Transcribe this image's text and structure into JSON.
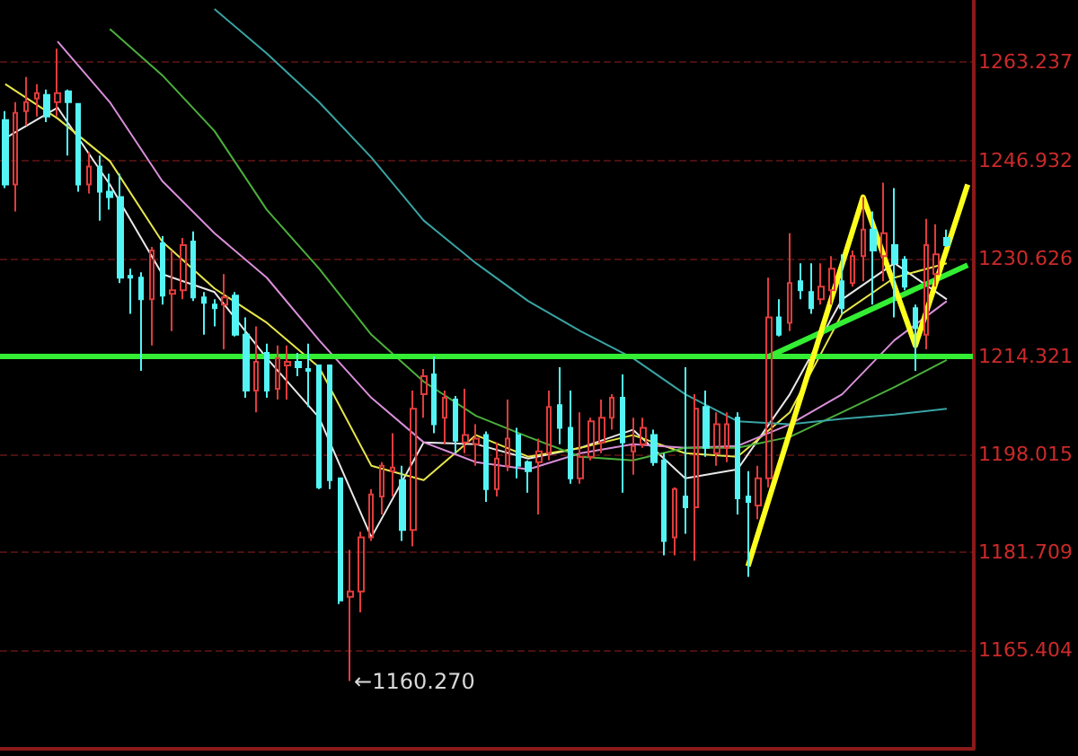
{
  "chart_data": {
    "type": "candlestick",
    "categories": [
      null,
      null,
      null,
      null,
      null,
      null,
      null,
      null,
      null,
      null,
      null,
      null,
      null,
      null,
      null,
      null,
      null,
      null,
      null,
      null,
      null,
      null,
      null,
      null,
      null,
      null,
      null,
      null,
      null,
      null,
      null,
      null,
      null,
      null,
      null,
      null,
      null,
      null,
      null,
      null,
      null,
      null,
      null,
      null,
      null,
      null,
      null,
      null,
      null,
      null,
      null,
      null,
      null,
      null,
      null,
      null,
      null,
      null,
      null,
      null,
      null,
      null,
      null,
      null,
      null,
      null,
      null,
      null,
      null,
      null,
      null,
      null,
      null,
      null,
      null,
      null,
      null,
      null,
      null,
      null,
      null,
      null,
      null,
      null,
      null,
      null,
      null,
      null,
      null,
      null,
      null,
      null,
      null
    ],
    "ohlc": [
      [
        1253.6,
        1255.1,
        1242.3,
        1242.9
      ],
      [
        1242.9,
        1256.6,
        1238.4,
        1254.8
      ],
      [
        1255.1,
        1260.8,
        1252.7,
        1256.6
      ],
      [
        1257.2,
        1259.6,
        1254.2,
        1258.1
      ],
      [
        1257.8,
        1258.7,
        1253.3,
        1254.2
      ],
      [
        1256.6,
        1265.5,
        1254.2,
        1258.1
      ],
      [
        1258.4,
        1258.7,
        1247.7,
        1256.6
      ],
      [
        1256.3,
        1256.3,
        1241.7,
        1242.9
      ],
      [
        1242.9,
        1248.3,
        1241.4,
        1245.9
      ],
      [
        1245.9,
        1247.7,
        1236.9,
        1241.7
      ],
      [
        1241.7,
        1244.7,
        1238.7,
        1240.8
      ],
      [
        1240.8,
        1244.7,
        1226.5,
        1227.4
      ],
      [
        1227.7,
        1228.9,
        1221.4,
        1227.4
      ],
      [
        1227.4,
        1228.3,
        1211.9,
        1223.8
      ],
      [
        1223.8,
        1232.5,
        1216.1,
        1231.9
      ],
      [
        1233.1,
        1234.3,
        1222.9,
        1224.4
      ],
      [
        1224.7,
        1231.9,
        1218.5,
        1225.3
      ],
      [
        1225.3,
        1234.0,
        1223.8,
        1232.8
      ],
      [
        1233.4,
        1235.1,
        1223.5,
        1224.1
      ],
      [
        1224.1,
        1225.0,
        1217.9,
        1223.2
      ],
      [
        1222.9,
        1223.8,
        1219.3,
        1222.3
      ],
      [
        1222.9,
        1228.0,
        1215.5,
        1224.1
      ],
      [
        1224.4,
        1225.0,
        1217.6,
        1217.9
      ],
      [
        1217.9,
        1220.8,
        1207.4,
        1208.6
      ],
      [
        1208.6,
        1219.3,
        1205.0,
        1213.4
      ],
      [
        1214.9,
        1216.4,
        1207.4,
        1208.6
      ],
      [
        1208.9,
        1216.1,
        1207.1,
        1214.0
      ],
      [
        1212.8,
        1216.1,
        1207.1,
        1213.4
      ],
      [
        1213.4,
        1214.9,
        1211.0,
        1212.5
      ],
      [
        1212.2,
        1216.4,
        1205.9,
        1211.9
      ],
      [
        1212.8,
        1212.8,
        1192.2,
        1192.5
      ],
      [
        1212.8,
        1212.8,
        1192.2,
        1193.7
      ],
      [
        1194.0,
        1194.0,
        1173.1,
        1173.7
      ],
      [
        1174.3,
        1182.1,
        1160.27,
        1175.2
      ],
      [
        1175.2,
        1185.1,
        1171.7,
        1184.2
      ],
      [
        1184.2,
        1192.2,
        1183.6,
        1191.3
      ],
      [
        1191.0,
        1196.7,
        1188.0,
        1196.1
      ],
      [
        1195.2,
        1201.5,
        1191.0,
        1195.8
      ],
      [
        1193.7,
        1196.1,
        1183.6,
        1185.4
      ],
      [
        1185.4,
        1208.6,
        1182.7,
        1205.6
      ],
      [
        1208.0,
        1212.2,
        1204.1,
        1211.0
      ],
      [
        1211.3,
        1214.3,
        1201.5,
        1203.0
      ],
      [
        1204.1,
        1208.6,
        1199.7,
        1207.4
      ],
      [
        1207.1,
        1207.7,
        1198.2,
        1200.3
      ],
      [
        1200.0,
        1208.9,
        1198.2,
        1201.2
      ],
      [
        1199.7,
        1203.0,
        1196.1,
        1200.6
      ],
      [
        1201.2,
        1201.8,
        1190.1,
        1192.2
      ],
      [
        1192.2,
        1200.0,
        1191.0,
        1197.3
      ],
      [
        1196.1,
        1207.1,
        1195.2,
        1200.6
      ],
      [
        1201.2,
        1202.4,
        1194.0,
        1196.1
      ],
      [
        1196.7,
        1197.0,
        1191.6,
        1195.2
      ],
      [
        1196.7,
        1200.6,
        1188.0,
        1198.5
      ],
      [
        1198.2,
        1208.6,
        1197.0,
        1205.9
      ],
      [
        1206.2,
        1212.5,
        1199.7,
        1202.4
      ],
      [
        1202.4,
        1208.6,
        1193.1,
        1194.0
      ],
      [
        1194.0,
        1205.0,
        1193.1,
        1197.6
      ],
      [
        1197.6,
        1204.1,
        1197.0,
        1203.5
      ],
      [
        1200.0,
        1207.1,
        1198.2,
        1204.1
      ],
      [
        1204.1,
        1208.0,
        1202.1,
        1207.4
      ],
      [
        1207.4,
        1211.3,
        1191.6,
        1200.0
      ],
      [
        1198.5,
        1204.1,
        1194.6,
        1199.4
      ],
      [
        1199.7,
        1204.1,
        1199.1,
        1202.4
      ],
      [
        1201.2,
        1202.1,
        1196.1,
        1196.7
      ],
      [
        1197.0,
        1198.2,
        1181.2,
        1183.6
      ],
      [
        1184.2,
        1192.5,
        1181.2,
        1192.2
      ],
      [
        1191.0,
        1212.5,
        1184.8,
        1189.2
      ],
      [
        1189.2,
        1208.0,
        1180.3,
        1205.6
      ],
      [
        1205.9,
        1208.6,
        1197.6,
        1199.1
      ],
      [
        1198.2,
        1205.0,
        1196.1,
        1203.0
      ],
      [
        1199.1,
        1205.0,
        1196.7,
        1203.0
      ],
      [
        1204.1,
        1205.0,
        1188.0,
        1190.7
      ],
      [
        1191.0,
        1195.2,
        1177.6,
        1190.1
      ],
      [
        1189.5,
        1196.1,
        1187.2,
        1194.0
      ],
      [
        1194.0,
        1227.4,
        1192.5,
        1220.8
      ],
      [
        1220.8,
        1223.8,
        1217.6,
        1217.9
      ],
      [
        1219.9,
        1234.8,
        1218.5,
        1226.5
      ],
      [
        1226.8,
        1229.8,
        1223.8,
        1225.3
      ],
      [
        1225.0,
        1229.8,
        1221.4,
        1222.3
      ],
      [
        1223.8,
        1229.8,
        1222.9,
        1225.9
      ],
      [
        1225.3,
        1231.0,
        1222.9,
        1228.9
      ],
      [
        1226.8,
        1231.3,
        1221.4,
        1222.3
      ],
      [
        1226.5,
        1231.9,
        1225.9,
        1231.0
      ],
      [
        1231.0,
        1240.8,
        1226.8,
        1235.4
      ],
      [
        1235.4,
        1238.4,
        1222.9,
        1231.9
      ],
      [
        1231.0,
        1243.2,
        1226.8,
        1234.8
      ],
      [
        1232.8,
        1242.3,
        1220.8,
        1229.8
      ],
      [
        1230.4,
        1231.0,
        1225.3,
        1225.9
      ],
      [
        1222.3,
        1222.9,
        1211.9,
        1219.0
      ],
      [
        1217.9,
        1237.2,
        1215.5,
        1232.8
      ],
      [
        1228.0,
        1236.3,
        1225.9,
        1231.3
      ],
      [
        1234.0,
        1235.4,
        1232.5,
        1232.8
      ],
      null,
      null
    ],
    "colors": [
      "#54f4f4",
      "#e03c3c",
      "#e03c3c",
      "#e03c3c",
      "#54f4f4",
      "#e03c3c",
      "#54f4f4",
      "#54f4f4",
      "#e03c3c",
      "#54f4f4",
      "#54f4f4",
      "#54f4f4",
      "#54f4f4",
      "#54f4f4",
      "#e03c3c",
      "#54f4f4",
      "#e03c3c",
      "#e03c3c",
      "#54f4f4",
      "#54f4f4",
      "#54f4f4",
      "#e03c3c",
      "#54f4f4",
      "#54f4f4",
      "#e03c3c",
      "#54f4f4",
      "#e03c3c",
      "#e03c3c",
      "#54f4f4",
      "#54f4f4",
      "#54f4f4",
      "#54f4f4",
      "#54f4f4",
      "#e03c3c",
      "#e03c3c",
      "#e03c3c",
      "#e03c3c",
      "#e03c3c",
      "#54f4f4",
      "#e03c3c",
      "#e03c3c",
      "#54f4f4",
      "#e03c3c",
      "#54f4f4",
      "#e03c3c",
      "#e03c3c",
      "#54f4f4",
      "#e03c3c",
      "#e03c3c",
      "#54f4f4",
      "#54f4f4",
      "#e03c3c",
      "#e03c3c",
      "#54f4f4",
      "#54f4f4",
      "#e03c3c",
      "#e03c3c",
      "#e03c3c",
      "#e03c3c",
      "#54f4f4",
      "#e03c3c",
      "#e03c3c",
      "#54f4f4",
      "#54f4f4",
      "#e03c3c",
      "#54f4f4",
      "#e03c3c",
      "#54f4f4",
      "#e03c3c",
      "#e03c3c",
      "#54f4f4",
      "#54f4f4",
      "#e03c3c",
      "#e03c3c",
      "#54f4f4",
      "#e03c3c",
      "#54f4f4",
      "#54f4f4",
      "#e03c3c",
      "#e03c3c",
      "#54f4f4",
      "#e03c3c",
      "#e03c3c",
      "#54f4f4",
      "#e03c3c",
      "#54f4f4",
      "#54f4f4",
      "#54f4f4",
      "#e03c3c",
      "#e03c3c",
      "#54f4f4",
      null,
      null
    ],
    "series": [
      {
        "type": "line",
        "color": "#e8e8e8",
        "values": [
          1250.6,
          null,
          null,
          null,
          null,
          1255.7,
          null,
          null,
          null,
          null,
          1242.9,
          null,
          null,
          null,
          null,
          1228.0,
          null,
          null,
          null,
          null,
          1225.0,
          null,
          null,
          null,
          null,
          1214.0,
          null,
          null,
          null,
          null,
          1204.1,
          null,
          null,
          null,
          null,
          1184.2,
          null,
          null,
          null,
          null,
          1200.0,
          null,
          null,
          null,
          null,
          1199.7,
          null,
          null,
          null,
          null,
          1197.3,
          null,
          null,
          null,
          null,
          1199.1,
          null,
          null,
          null,
          null,
          1202.1,
          null,
          null,
          null,
          null,
          1194.0,
          null,
          null,
          null,
          null,
          1195.5,
          null,
          null,
          null,
          null,
          1208.0,
          null,
          null,
          null,
          null,
          1223.8,
          null,
          null,
          null,
          null,
          1229.8,
          null,
          null,
          null,
          null,
          1223.8,
          null,
          null
        ]
      },
      {
        "type": "line",
        "color": "#e6e64c",
        "values": [
          1259.6,
          null,
          null,
          null,
          null,
          1253.9,
          null,
          null,
          null,
          null,
          1246.8,
          null,
          null,
          null,
          null,
          1233.4,
          null,
          null,
          null,
          null,
          1225.6,
          null,
          null,
          null,
          null,
          1219.9,
          null,
          null,
          null,
          null,
          1212.5,
          null,
          null,
          null,
          null,
          1196.1,
          null,
          null,
          null,
          null,
          1193.7,
          null,
          null,
          null,
          null,
          1201.2,
          null,
          null,
          null,
          null,
          1197.6,
          null,
          null,
          null,
          null,
          1199.1,
          null,
          null,
          null,
          null,
          1201.2,
          null,
          null,
          null,
          null,
          1198.2,
          null,
          null,
          null,
          null,
          1197.6,
          null,
          null,
          null,
          null,
          1205.0,
          null,
          null,
          null,
          null,
          1221.4,
          null,
          null,
          null,
          null,
          1227.4,
          null,
          null,
          null,
          null,
          1229.8,
          null,
          null
        ]
      },
      {
        "type": "line",
        "color": "#d98fd9",
        "values": [
          null,
          null,
          null,
          null,
          null,
          1266.7,
          null,
          null,
          null,
          null,
          1256.6,
          null,
          null,
          null,
          null,
          1243.5,
          null,
          null,
          null,
          null,
          1234.8,
          null,
          null,
          null,
          null,
          1227.4,
          null,
          null,
          null,
          null,
          1217.0,
          null,
          null,
          null,
          null,
          1207.4,
          null,
          null,
          null,
          null,
          1200.0,
          null,
          null,
          null,
          null,
          1196.7,
          null,
          null,
          null,
          null,
          1195.5,
          null,
          null,
          null,
          null,
          1198.2,
          null,
          null,
          null,
          null,
          1199.7,
          null,
          null,
          null,
          null,
          1199.1,
          null,
          null,
          null,
          null,
          1199.4,
          null,
          null,
          null,
          null,
          1203.0,
          null,
          null,
          null,
          null,
          1208.0,
          null,
          null,
          null,
          null,
          1217.0,
          null,
          null,
          null,
          null,
          1223.5,
          null,
          null
        ]
      },
      {
        "type": "line",
        "color": "#4caf3c",
        "values": [
          null,
          null,
          null,
          null,
          null,
          null,
          null,
          null,
          null,
          null,
          1268.8,
          null,
          null,
          null,
          null,
          1261.1,
          null,
          null,
          null,
          null,
          1251.8,
          null,
          null,
          null,
          null,
          1238.7,
          null,
          null,
          null,
          null,
          1228.9,
          null,
          null,
          null,
          null,
          1217.9,
          null,
          null,
          null,
          null,
          1210.1,
          null,
          null,
          null,
          null,
          1204.4,
          null,
          null,
          null,
          null,
          1200.9,
          null,
          null,
          null,
          null,
          1197.6,
          null,
          null,
          null,
          null,
          1197.0,
          null,
          null,
          null,
          null,
          1199.1,
          null,
          null,
          null,
          null,
          1199.1,
          null,
          null,
          null,
          null,
          1200.9,
          null,
          null,
          null,
          null,
          1205.0,
          null,
          null,
          null,
          null,
          1209.2,
          null,
          null,
          null,
          null,
          1213.7,
          null,
          null
        ]
      },
      {
        "type": "line",
        "color": "#3aa3a3",
        "values": [
          null,
          null,
          null,
          null,
          null,
          null,
          null,
          null,
          null,
          null,
          null,
          null,
          null,
          null,
          null,
          null,
          null,
          null,
          null,
          null,
          1272.1,
          null,
          null,
          null,
          null,
          1264.7,
          null,
          null,
          null,
          null,
          1256.6,
          null,
          null,
          null,
          null,
          1247.4,
          null,
          null,
          null,
          null,
          1236.9,
          null,
          null,
          null,
          null,
          1229.8,
          null,
          null,
          null,
          null,
          1223.5,
          null,
          null,
          null,
          null,
          1218.5,
          null,
          null,
          null,
          null,
          1214.0,
          null,
          null,
          null,
          null,
          1208.0,
          null,
          null,
          null,
          null,
          1203.5,
          null,
          null,
          null,
          null,
          1203.0,
          null,
          null,
          null,
          null,
          1203.9,
          null,
          null,
          null,
          null,
          1204.6,
          null,
          null,
          null,
          null,
          1205.6,
          null,
          null
        ]
      },
      {
        "type": "line",
        "color": "#33ee33",
        "values": [
          null,
          null,
          null,
          null,
          null,
          null,
          null,
          null,
          null,
          null,
          null,
          null,
          null,
          null,
          null,
          null,
          null,
          null,
          null,
          null,
          null,
          null,
          null,
          null,
          null,
          null,
          null,
          null,
          null,
          null,
          null,
          null,
          null,
          null,
          null,
          null,
          null,
          null,
          null,
          null,
          null,
          null,
          null,
          null,
          null,
          null,
          null,
          null,
          null,
          null,
          null,
          null,
          null,
          null,
          null,
          null,
          null,
          null,
          null,
          null,
          null,
          null,
          null,
          null,
          null,
          null,
          null,
          null,
          null,
          null,
          null,
          null,
          null,
          1214.3,
          null,
          null,
          null,
          null,
          null,
          null,
          null,
          null,
          null,
          null,
          null,
          null,
          null,
          null,
          null,
          null,
          null,
          null,
          1229.5
        ]
      },
      {
        "type": "line",
        "color": "#ffff1e",
        "values": [
          null,
          null,
          null,
          null,
          null,
          null,
          null,
          null,
          null,
          null,
          null,
          null,
          null,
          null,
          null,
          null,
          null,
          null,
          null,
          null,
          null,
          null,
          null,
          null,
          null,
          null,
          null,
          null,
          null,
          null,
          null,
          null,
          null,
          null,
          null,
          null,
          null,
          null,
          null,
          null,
          null,
          null,
          null,
          null,
          null,
          null,
          null,
          null,
          null,
          null,
          null,
          null,
          null,
          null,
          null,
          null,
          null,
          null,
          null,
          null,
          null,
          null,
          null,
          null,
          null,
          null,
          null,
          null,
          null,
          null,
          null,
          1179.4,
          null,
          null,
          null,
          null,
          null,
          null,
          null,
          null,
          null,
          null,
          1240.8,
          null,
          null,
          null,
          null,
          1216.1,
          null,
          null,
          null,
          null,
          1242.9
        ]
      }
    ],
    "ylim": [
      1149.0,
      1273.6
    ],
    "yticks": [
      1165.404,
      1181.709,
      1198.015,
      1214.321,
      1230.626,
      1246.932,
      1263.237
    ],
    "grid": "y",
    "marker": "none",
    "tick_labels": "y",
    "ref_lines": [
      {
        "axis": "y",
        "value": 1214.321,
        "color": "#33ee33"
      }
    ],
    "annotations": [
      "←1160.270"
    ]
  }
}
